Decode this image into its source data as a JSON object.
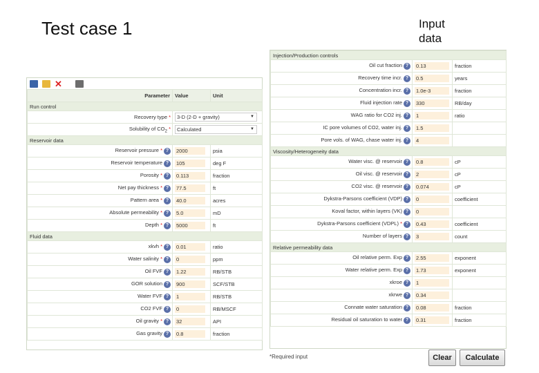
{
  "slide": {
    "title": "Test case 1",
    "side_title_line1": "Input",
    "side_title_line2": "data"
  },
  "toolbar": {
    "icons": [
      "save-icon",
      "open-icon",
      "delete-icon",
      "print-icon"
    ]
  },
  "left": {
    "headers": {
      "parameter": "Parameter",
      "value": "Value",
      "unit": "Unit"
    },
    "section_run": "Run control",
    "recovery_type": {
      "label": "Recovery type",
      "value": "3-D (2-D + gravity)"
    },
    "solubility": {
      "label_pre": "Solubility of CO",
      "label_sub": "2",
      "value": "Calculated"
    },
    "section_reservoir": "Reservoir data",
    "reservoir": [
      {
        "label": "Reservoir pressure",
        "value": "2000",
        "unit": "psia",
        "req": true
      },
      {
        "label": "Reservoir temperature",
        "value": "105",
        "unit": "deg F",
        "req": false
      },
      {
        "label": "Porosity",
        "value": "0.113",
        "unit": "fraction",
        "req": true
      },
      {
        "label": "Net pay thickness",
        "value": "77.5",
        "unit": "ft",
        "req": true
      },
      {
        "label": "Pattern area",
        "value": "40.0",
        "unit": "acres",
        "req": true
      },
      {
        "label": "Absolute permeability",
        "value": "5.0",
        "unit": "mD",
        "req": true
      },
      {
        "label": "Depth",
        "value": "5000",
        "unit": "ft",
        "req": true
      }
    ],
    "section_fluid": "Fluid data",
    "fluid": [
      {
        "label": "xkvh",
        "value": "0.01",
        "unit": "ratio",
        "req": true
      },
      {
        "label": "Water salinity",
        "value": "0",
        "unit": "ppm",
        "req": true
      },
      {
        "label": "Oil FVF",
        "value": "1.22",
        "unit": "RB/STB",
        "req": false
      },
      {
        "label": "GOR solution",
        "value": "900",
        "unit": "SCF/STB",
        "req": false
      },
      {
        "label": "Water FVF",
        "value": "1",
        "unit": "RB/STB",
        "req": false
      },
      {
        "label": "CO2 FVF",
        "value": "0",
        "unit": "RB/MSCF",
        "req": false
      },
      {
        "label": "Oil gravity",
        "value": "32",
        "unit": "API",
        "req": true
      },
      {
        "label": "Gas gravity",
        "value": "0.8",
        "unit": "fraction",
        "req": false
      }
    ]
  },
  "right": {
    "section_injection": "Injection/Production controls",
    "injection": [
      {
        "label": "Oil cut fraction",
        "value": "0.13",
        "unit": "fraction"
      },
      {
        "label": "Recovery time incr.",
        "value": "0.5",
        "unit": "years"
      },
      {
        "label": "Concentration incr.",
        "value": "1.0e-3",
        "unit": "fraction"
      },
      {
        "label": "Fluid injection rate",
        "value": "330",
        "unit": "RB/day"
      },
      {
        "label": "WAG ratio for CO2 inj.",
        "value": "1",
        "unit": "ratio"
      },
      {
        "label": "IC pore volumes of CO2, water inj.",
        "value": "1.5",
        "unit": ""
      },
      {
        "label": "Pore vols. of WAG, chase water inj.",
        "value": "4",
        "unit": ""
      }
    ],
    "section_viscosity": "Viscosity/Heterogeneity data",
    "viscosity": [
      {
        "label": "Water visc. @ reservoir",
        "value": "0.8",
        "unit": "cP",
        "req": false
      },
      {
        "label": "Oil visc. @ reservoir",
        "value": "2",
        "unit": "cP",
        "req": false
      },
      {
        "label": "CO2 visc. @ reservoir",
        "value": "0.074",
        "unit": "cP",
        "req": false
      },
      {
        "label": "Dykstra-Parsons coefficient (VDP)",
        "value": "0",
        "unit": "coefficient",
        "req": false
      },
      {
        "label": "Koval factor, within layers (VK)",
        "value": "0",
        "unit": "",
        "req": false
      },
      {
        "label": "Dykstra-Parsons coefficient (VDPL)",
        "value": "0.43",
        "unit": "coefficient",
        "req": true
      },
      {
        "label": "Number of layers",
        "value": "3",
        "unit": "count",
        "req": false
      }
    ],
    "section_relperm": "Relative permeability data",
    "relperm": [
      {
        "label": "Oil relative perm. Exp",
        "value": "2.55",
        "unit": "exponent"
      },
      {
        "label": "Water relative perm. Exp",
        "value": "1.73",
        "unit": "exponent"
      },
      {
        "label": "xkroe",
        "value": "1",
        "unit": ""
      },
      {
        "label": "xkrwe",
        "value": "0.34",
        "unit": ""
      },
      {
        "label": "Connate water saturation",
        "value": "0.08",
        "unit": "fraction"
      },
      {
        "label": "Residual oil saturation to water",
        "value": "0.31",
        "unit": "fraction"
      }
    ]
  },
  "footer": {
    "required_note": "*Required input",
    "clear_label": "Clear",
    "calculate_label": "Calculate"
  },
  "colors": {
    "value_bg": "#fdf0dc",
    "section_bg": "#e8efe0",
    "required": "#dd1111",
    "help_icon": "#5a6fa8"
  }
}
